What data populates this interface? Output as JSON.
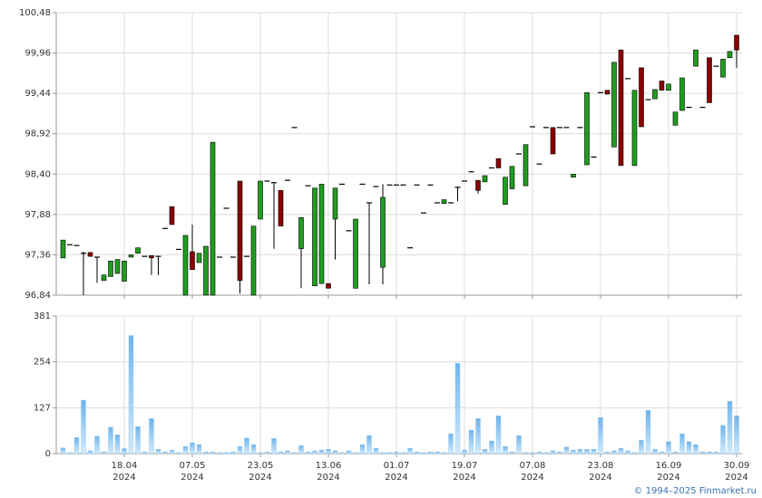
{
  "chart_data": [
    {
      "type": "candlestick",
      "up_color": "#1f9e1f",
      "down_color": "#8b0000",
      "flat_color": "#000000",
      "ylim": [
        96.84,
        100.48
      ],
      "yticks": [
        {
          "value": 96.84,
          "label": "96,84"
        },
        {
          "value": 97.36,
          "label": "97,36"
        },
        {
          "value": 97.88,
          "label": "97,88"
        },
        {
          "value": 98.4,
          "label": "98,40"
        },
        {
          "value": 98.92,
          "label": "98,92"
        },
        {
          "value": 99.44,
          "label": "99,44"
        },
        {
          "value": 99.96,
          "label": "99,96"
        },
        {
          "value": 100.48,
          "label": "100,48"
        }
      ],
      "xticks": [
        9,
        19,
        29,
        39,
        49,
        59,
        69,
        79,
        89,
        99
      ],
      "open": [
        97.32,
        97.49,
        97.48,
        97.38,
        97.39,
        97.33,
        97.03,
        97.08,
        97.12,
        97.02,
        97.33,
        97.38,
        97.34,
        97.35,
        97.34,
        97.7,
        97.98,
        97.43,
        96.84,
        97.4,
        97.26,
        96.84,
        96.84,
        97.33,
        97.96,
        97.33,
        98.31,
        97.34,
        96.84,
        97.82,
        98.31,
        98.29,
        98.19,
        98.32,
        99.0,
        97.44,
        98.25,
        96.96,
        96.99,
        96.99,
        97.82,
        98.27,
        97.67,
        96.93,
        98.27,
        98.03,
        98.24,
        97.2,
        98.26,
        98.26,
        98.26,
        97.45,
        98.26,
        97.9,
        98.26,
        98.03,
        98.02,
        98.03,
        98.23,
        98.31,
        98.43,
        98.32,
        98.3,
        98.48,
        98.6,
        98.01,
        98.21,
        98.66,
        98.25,
        99.01,
        98.53,
        99.0,
        99.0,
        99.0,
        99.0,
        98.36,
        99.0,
        98.52,
        98.62,
        99.45,
        99.48,
        98.75,
        100.0,
        99.63,
        98.51,
        99.77,
        99.36,
        99.37,
        99.6,
        99.48,
        99.03,
        99.22,
        99.26,
        99.79,
        99.26,
        99.9,
        99.79,
        99.65,
        99.9,
        100.19
      ],
      "high": [
        97.55,
        97.49,
        97.48,
        97.4,
        97.39,
        97.33,
        97.1,
        97.28,
        97.3,
        97.28,
        97.36,
        97.45,
        97.34,
        97.35,
        97.34,
        97.7,
        97.98,
        97.43,
        97.61,
        97.75,
        97.38,
        97.47,
        98.81,
        97.33,
        97.96,
        97.33,
        98.31,
        97.34,
        97.73,
        98.31,
        98.31,
        98.29,
        98.19,
        98.32,
        99.0,
        97.84,
        98.25,
        98.22,
        98.27,
        96.99,
        98.22,
        98.27,
        97.67,
        97.82,
        98.27,
        98.03,
        98.24,
        98.27,
        98.26,
        98.26,
        98.26,
        97.45,
        98.26,
        97.9,
        98.26,
        98.03,
        98.07,
        98.03,
        98.23,
        98.31,
        98.43,
        98.32,
        98.38,
        98.48,
        98.6,
        98.36,
        98.5,
        98.66,
        98.78,
        99.01,
        98.53,
        99.0,
        99.0,
        99.0,
        99.0,
        98.4,
        99.0,
        99.45,
        98.62,
        99.45,
        99.48,
        99.84,
        100.0,
        99.63,
        99.48,
        99.77,
        99.36,
        99.49,
        99.6,
        99.56,
        99.2,
        99.64,
        99.26,
        100.0,
        99.26,
        99.9,
        99.79,
        99.88,
        99.98,
        100.19
      ],
      "low": [
        97.32,
        97.49,
        97.48,
        96.84,
        97.34,
        97.0,
        97.03,
        97.08,
        97.12,
        97.02,
        97.33,
        97.38,
        97.34,
        97.1,
        97.1,
        97.7,
        97.75,
        97.43,
        96.84,
        97.17,
        97.26,
        96.84,
        96.84,
        97.33,
        97.96,
        97.33,
        96.86,
        97.34,
        96.84,
        97.82,
        98.31,
        97.44,
        97.73,
        98.32,
        99.0,
        96.93,
        98.25,
        96.96,
        96.99,
        96.93,
        97.3,
        98.27,
        97.67,
        96.93,
        98.27,
        96.98,
        98.24,
        96.98,
        98.26,
        98.26,
        98.26,
        97.45,
        98.26,
        97.9,
        98.26,
        98.03,
        98.02,
        98.03,
        98.05,
        98.31,
        98.43,
        98.15,
        98.3,
        98.48,
        98.48,
        98.01,
        98.21,
        98.66,
        98.25,
        99.01,
        98.53,
        99.0,
        98.66,
        99.0,
        99.0,
        98.36,
        99.0,
        98.52,
        98.62,
        99.45,
        99.43,
        98.75,
        98.51,
        99.63,
        98.51,
        99.01,
        99.36,
        99.37,
        99.48,
        99.48,
        99.03,
        99.22,
        99.26,
        99.79,
        99.26,
        99.32,
        99.79,
        99.65,
        99.9,
        99.77
      ],
      "close": [
        97.55,
        97.49,
        97.48,
        97.38,
        97.34,
        97.33,
        97.1,
        97.28,
        97.3,
        97.28,
        97.36,
        97.45,
        97.34,
        97.32,
        97.34,
        97.7,
        97.75,
        97.43,
        97.61,
        97.17,
        97.38,
        97.47,
        98.81,
        97.33,
        97.96,
        97.33,
        97.03,
        97.34,
        97.73,
        98.31,
        98.31,
        98.29,
        97.73,
        98.32,
        99.0,
        97.84,
        98.25,
        98.22,
        98.27,
        96.93,
        98.22,
        98.27,
        97.67,
        97.82,
        98.27,
        98.03,
        98.24,
        98.1,
        98.26,
        98.26,
        98.26,
        97.45,
        98.26,
        97.9,
        98.26,
        98.03,
        98.07,
        98.03,
        98.23,
        98.31,
        98.43,
        98.19,
        98.38,
        98.48,
        98.48,
        98.36,
        98.5,
        98.66,
        98.78,
        99.01,
        98.53,
        99.0,
        98.66,
        99.0,
        99.0,
        98.4,
        99.0,
        99.45,
        98.62,
        99.45,
        99.43,
        99.84,
        98.51,
        99.63,
        99.48,
        99.01,
        99.36,
        99.49,
        99.48,
        99.56,
        99.2,
        99.64,
        99.26,
        100.0,
        99.26,
        99.32,
        99.79,
        99.88,
        99.98,
        100.0
      ]
    },
    {
      "type": "bar",
      "color": "#8cc6f2",
      "ylim": [
        0,
        381
      ],
      "yticks": [
        0,
        127,
        254,
        381
      ],
      "xticks": [
        {
          "value": 9,
          "label": "18.04",
          "year": "2024"
        },
        {
          "value": 19,
          "label": "07.05",
          "year": "2024"
        },
        {
          "value": 29,
          "label": "23.05",
          "year": "2024"
        },
        {
          "value": 39,
          "label": "13.06",
          "year": "2024"
        },
        {
          "value": 49,
          "label": "01.07",
          "year": "2024"
        },
        {
          "value": 59,
          "label": "19.07",
          "year": "2024"
        },
        {
          "value": 69,
          "label": "07.08",
          "year": "2024"
        },
        {
          "value": 79,
          "label": "23.08",
          "year": "2024"
        },
        {
          "value": 89,
          "label": "16.09",
          "year": "2024"
        },
        {
          "value": 99,
          "label": "30.09",
          "year": "2024"
        }
      ],
      "values": [
        16,
        3,
        45,
        148,
        8,
        48,
        5,
        73,
        52,
        14,
        327,
        75,
        5,
        97,
        12,
        5,
        10,
        3,
        20,
        30,
        25,
        5,
        5,
        3,
        3,
        5,
        20,
        43,
        25,
        3,
        5,
        42,
        5,
        8,
        3,
        22,
        5,
        8,
        10,
        12,
        8,
        3,
        8,
        3,
        25,
        50,
        15,
        3,
        3,
        5,
        3,
        15,
        5,
        3,
        5,
        5,
        3,
        55,
        250,
        10,
        65,
        97,
        12,
        35,
        105,
        20,
        5,
        50,
        3,
        3,
        5,
        3,
        8,
        5,
        18,
        10,
        12,
        12,
        12,
        100,
        5,
        8,
        15,
        8,
        3,
        37,
        120,
        12,
        5,
        33,
        5,
        55,
        33,
        25,
        5,
        5,
        5,
        78,
        145,
        105
      ]
    }
  ],
  "source": "© 1994–2025 Finmarket.ru"
}
